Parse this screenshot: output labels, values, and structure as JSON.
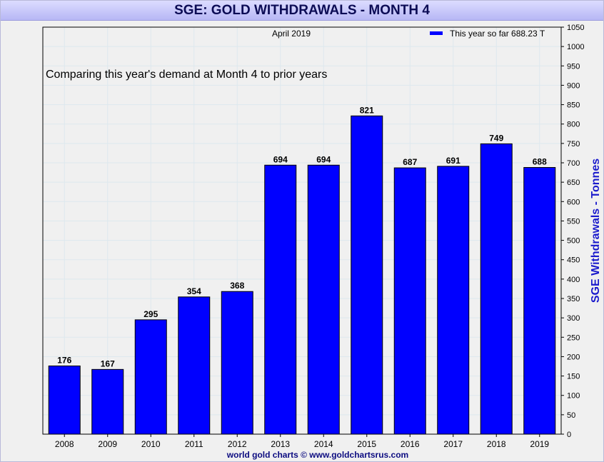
{
  "header": {
    "title": "SGE: GOLD WITHDRAWALS - MONTH 4"
  },
  "subtitle": "April 2019",
  "annotation": "Comparing this year's demand at Month 4 to prior years",
  "footer": "world gold charts © www.goldchartsrus.com",
  "colors": {
    "bar": "#0000ff",
    "axis_label": "#1a1acc",
    "footer": "#0c0c80",
    "grid": "#dde8ee"
  },
  "chart_data": {
    "type": "bar",
    "categories": [
      "2008",
      "2009",
      "2010",
      "2011",
      "2012",
      "2013",
      "2014",
      "2015",
      "2016",
      "2017",
      "2018",
      "2019"
    ],
    "series": [
      {
        "name": "This year so far 688.23 T",
        "values": [
          176,
          167,
          295,
          354,
          368,
          694,
          694,
          821,
          687,
          691,
          749,
          688
        ]
      }
    ],
    "data_labels": [
      "176",
      "167",
      "295",
      "354",
      "368",
      "694",
      "694",
      "821",
      "687",
      "691",
      "749",
      "688"
    ],
    "ylabel": "SGE Withdrawals - Tonnes",
    "ylim": [
      0,
      1050
    ],
    "ytick_step": 50,
    "y_axis_side": "right",
    "grid": true,
    "legend_position": "top-right"
  }
}
